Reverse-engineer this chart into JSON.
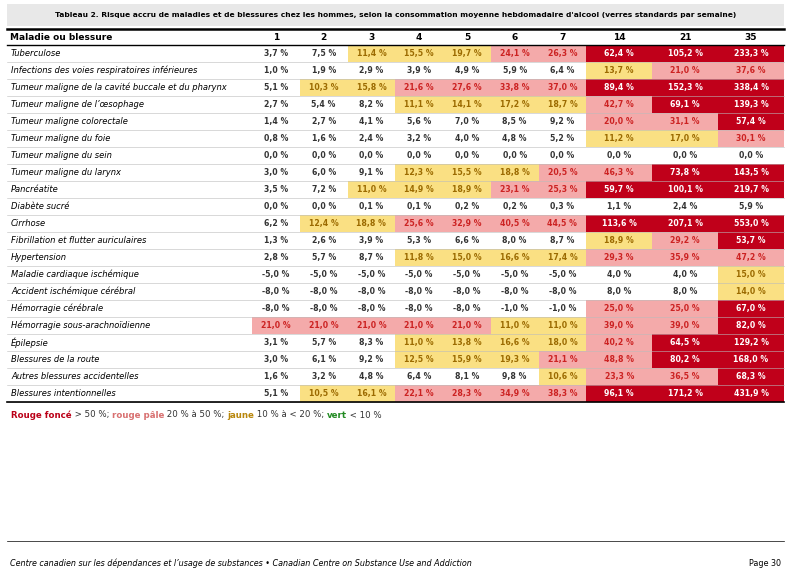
{
  "title": "Tableau 2. Risque accru de maladies et de blessures chez les hommes, selon la consommation moyenne hebdomadaire d'alcool (verres standards par semaine)",
  "header": [
    "Maladie ou blessure",
    "1",
    "2",
    "3",
    "4",
    "5",
    "6",
    "7",
    "14",
    "21",
    "35"
  ],
  "rows": [
    [
      "Tuberculose",
      "3,7 %",
      "7,5 %",
      "11,4 %",
      "15,5 %",
      "19,7 %",
      "24,1 %",
      "26,3 %",
      "62,4 %",
      "105,2 %",
      "233,3 %"
    ],
    [
      "Infections des voies respiratoires inférieures",
      "1,0 %",
      "1,9 %",
      "2,9 %",
      "3,9 %",
      "4,9 %",
      "5,9 %",
      "6,4 %",
      "13,7 %",
      "21,0 %",
      "37,6 %"
    ],
    [
      "Tumeur maligne de la cavité buccale et du pharynx",
      "5,1 %",
      "10,3 %",
      "15,8 %",
      "21,6 %",
      "27,6 %",
      "33,8 %",
      "37,0 %",
      "89,4 %",
      "152,3 %",
      "338,4 %"
    ],
    [
      "Tumeur maligne de l’œsophage",
      "2,7 %",
      "5,4 %",
      "8,2 %",
      "11,1 %",
      "14,1 %",
      "17,2 %",
      "18,7 %",
      "42,7 %",
      "69,1 %",
      "139,3 %"
    ],
    [
      "Tumeur maligne colorectale",
      "1,4 %",
      "2,7 %",
      "4,1 %",
      "5,6 %",
      "7,0 %",
      "8,5 %",
      "9,2 %",
      "20,0 %",
      "31,1 %",
      "57,4 %"
    ],
    [
      "Tumeur maligne du foie",
      "0,8 %",
      "1,6 %",
      "2,4 %",
      "3,2 %",
      "4,0 %",
      "4,8 %",
      "5,2 %",
      "11,2 %",
      "17,0 %",
      "30,1 %"
    ],
    [
      "Tumeur maligne du sein",
      "0,0 %",
      "0,0 %",
      "0,0 %",
      "0,0 %",
      "0,0 %",
      "0,0 %",
      "0,0 %",
      "0,0 %",
      "0,0 %",
      "0,0 %"
    ],
    [
      "Tumeur maligne du larynx",
      "3,0 %",
      "6,0 %",
      "9,1 %",
      "12,3 %",
      "15,5 %",
      "18,8 %",
      "20,5 %",
      "46,3 %",
      "73,8 %",
      "143,5 %"
    ],
    [
      "Pancréatite",
      "3,5 %",
      "7,2 %",
      "11,0 %",
      "14,9 %",
      "18,9 %",
      "23,1 %",
      "25,3 %",
      "59,7 %",
      "100,1 %",
      "219,7 %"
    ],
    [
      "Diabète sucré",
      "0,0 %",
      "0,0 %",
      "0,1 %",
      "0,1 %",
      "0,2 %",
      "0,2 %",
      "0,3 %",
      "1,1 %",
      "2,4 %",
      "5,9 %"
    ],
    [
      "Cirrhose",
      "6,2 %",
      "12,4 %",
      "18,8 %",
      "25,6 %",
      "32,9 %",
      "40,5 %",
      "44,5 %",
      "113,6 %",
      "207,1 %",
      "553,0 %"
    ],
    [
      "Fibrillation et flutter auriculaires",
      "1,3 %",
      "2,6 %",
      "3,9 %",
      "5,3 %",
      "6,6 %",
      "8,0 %",
      "8,7 %",
      "18,9 %",
      "29,2 %",
      "53,7 %"
    ],
    [
      "Hypertension",
      "2,8 %",
      "5,7 %",
      "8,7 %",
      "11,8 %",
      "15,0 %",
      "16,6 %",
      "17,4 %",
      "29,3 %",
      "35,9 %",
      "47,2 %"
    ],
    [
      "Maladie cardiaque ischémique",
      "-5,0 %",
      "-5,0 %",
      "-5,0 %",
      "-5,0 %",
      "-5,0 %",
      "-5,0 %",
      "-5,0 %",
      "4,0 %",
      "4,0 %",
      "15,0 %"
    ],
    [
      "Accident ischémique cérébral",
      "-8,0 %",
      "-8,0 %",
      "-8,0 %",
      "-8,0 %",
      "-8,0 %",
      "-8,0 %",
      "-8,0 %",
      "8,0 %",
      "8,0 %",
      "14,0 %"
    ],
    [
      "Hémorragie cérébrale",
      "-8,0 %",
      "-8,0 %",
      "-8,0 %",
      "-8,0 %",
      "-8,0 %",
      "-1,0 %",
      "-1,0 %",
      "25,0 %",
      "25,0 %",
      "67,0 %"
    ],
    [
      "Hémorragie sous-arachnoïdienne",
      "21,0 %",
      "21,0 %",
      "21,0 %",
      "21,0 %",
      "21,0 %",
      "11,0 %",
      "11,0 %",
      "39,0 %",
      "39,0 %",
      "82,0 %"
    ],
    [
      "Épilepsie",
      "3,1 %",
      "5,7 %",
      "8,3 %",
      "11,0 %",
      "13,8 %",
      "16,6 %",
      "18,0 %",
      "40,2 %",
      "64,5 %",
      "129,2 %"
    ],
    [
      "Blessures de la route",
      "3,0 %",
      "6,1 %",
      "9,2 %",
      "12,5 %",
      "15,9 %",
      "19,3 %",
      "21,1 %",
      "48,8 %",
      "80,2 %",
      "168,0 %"
    ],
    [
      "Autres blessures accidentelles",
      "1,6 %",
      "3,2 %",
      "4,8 %",
      "6,4 %",
      "8,1 %",
      "9,8 %",
      "10,6 %",
      "23,3 %",
      "36,5 %",
      "68,3 %"
    ],
    [
      "Blessures intentionnelles",
      "5,1 %",
      "10,5 %",
      "16,1 %",
      "22,1 %",
      "28,3 %",
      "34,9 %",
      "38,3 %",
      "96,1 %",
      "171,2 %",
      "431,9 %"
    ]
  ],
  "values": [
    [
      3.7,
      7.5,
      11.4,
      15.5,
      19.7,
      24.1,
      26.3,
      62.4,
      105.2,
      233.3
    ],
    [
      1.0,
      1.9,
      2.9,
      3.9,
      4.9,
      5.9,
      6.4,
      13.7,
      21.0,
      37.6
    ],
    [
      5.1,
      10.3,
      15.8,
      21.6,
      27.6,
      33.8,
      37.0,
      89.4,
      152.3,
      338.4
    ],
    [
      2.7,
      5.4,
      8.2,
      11.1,
      14.1,
      17.2,
      18.7,
      42.7,
      69.1,
      139.3
    ],
    [
      1.4,
      2.7,
      4.1,
      5.6,
      7.0,
      8.5,
      9.2,
      20.0,
      31.1,
      57.4
    ],
    [
      0.8,
      1.6,
      2.4,
      3.2,
      4.0,
      4.8,
      5.2,
      11.2,
      17.0,
      30.1
    ],
    [
      0.0,
      0.0,
      0.0,
      0.0,
      0.0,
      0.0,
      0.0,
      0.0,
      0.0,
      0.0
    ],
    [
      3.0,
      6.0,
      9.1,
      12.3,
      15.5,
      18.8,
      20.5,
      46.3,
      73.8,
      143.5
    ],
    [
      3.5,
      7.2,
      11.0,
      14.9,
      18.9,
      23.1,
      25.3,
      59.7,
      100.1,
      219.7
    ],
    [
      0.0,
      0.0,
      0.1,
      0.1,
      0.2,
      0.2,
      0.3,
      1.1,
      2.4,
      5.9
    ],
    [
      6.2,
      12.4,
      18.8,
      25.6,
      32.9,
      40.5,
      44.5,
      113.6,
      207.1,
      553.0
    ],
    [
      1.3,
      2.6,
      3.9,
      5.3,
      6.6,
      8.0,
      8.7,
      18.9,
      29.2,
      53.7
    ],
    [
      2.8,
      5.7,
      8.7,
      11.8,
      15.0,
      16.6,
      17.4,
      29.3,
      35.9,
      47.2
    ],
    [
      -5.0,
      -5.0,
      -5.0,
      -5.0,
      -5.0,
      -5.0,
      -5.0,
      4.0,
      4.0,
      15.0
    ],
    [
      -8.0,
      -8.0,
      -8.0,
      -8.0,
      -8.0,
      -8.0,
      -8.0,
      8.0,
      8.0,
      14.0
    ],
    [
      -8.0,
      -8.0,
      -8.0,
      -8.0,
      -8.0,
      -1.0,
      -1.0,
      25.0,
      25.0,
      67.0
    ],
    [
      21.0,
      21.0,
      21.0,
      21.0,
      21.0,
      11.0,
      11.0,
      39.0,
      39.0,
      82.0
    ],
    [
      3.1,
      5.7,
      8.3,
      11.0,
      13.8,
      16.6,
      18.0,
      40.2,
      64.5,
      129.2
    ],
    [
      3.0,
      6.1,
      9.2,
      12.5,
      15.9,
      19.3,
      21.1,
      48.8,
      80.2,
      168.0
    ],
    [
      1.6,
      3.2,
      4.8,
      6.4,
      8.1,
      9.8,
      10.6,
      23.3,
      36.5,
      68.3
    ],
    [
      5.1,
      10.5,
      16.1,
      22.1,
      28.3,
      34.9,
      38.3,
      96.1,
      171.2,
      431.9
    ]
  ],
  "footer_left": "Centre canadien sur les dépendances et l’usage de substances • Canadian Centre on Substance Use and Addiction",
  "footer_right": "Page 30",
  "color_dark_red": "#C0001A",
  "color_light_red": "#F4AAAA",
  "color_yellow": "#FAE083",
  "color_white": "#ffffff",
  "title_bg": "#E8E8E8"
}
